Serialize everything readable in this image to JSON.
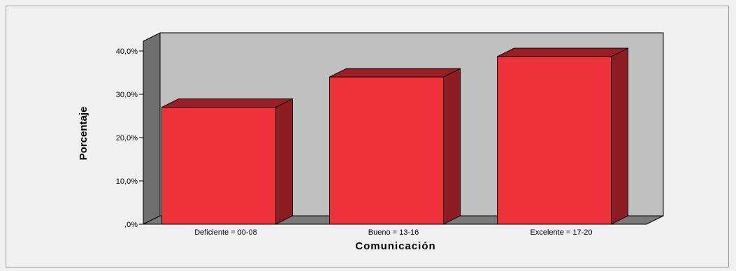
{
  "chart_data": {
    "type": "bar",
    "style": "3d",
    "categories": [
      "Deficiente = 00-08",
      "Bueno = 13-16",
      "Excelente = 17-20"
    ],
    "values": [
      27.0,
      34.0,
      38.7
    ],
    "xlabel": "Comunicación",
    "ylabel": "Porcentaje",
    "ylim": [
      0,
      40
    ],
    "yticks": [
      ",0%",
      "10,0%",
      "20,0%",
      "30,0%",
      "40,0%"
    ],
    "grid": false,
    "legend": "none",
    "colors": {
      "bar_front": "#f0323b",
      "bar_top": "#9a1e24",
      "bar_side": "#8e1c22",
      "back_wall": "#c0c0c0",
      "side_wall": "#6f6f6f",
      "floor": "#7a7a7a",
      "frame_background": "#f0f0f0"
    }
  }
}
